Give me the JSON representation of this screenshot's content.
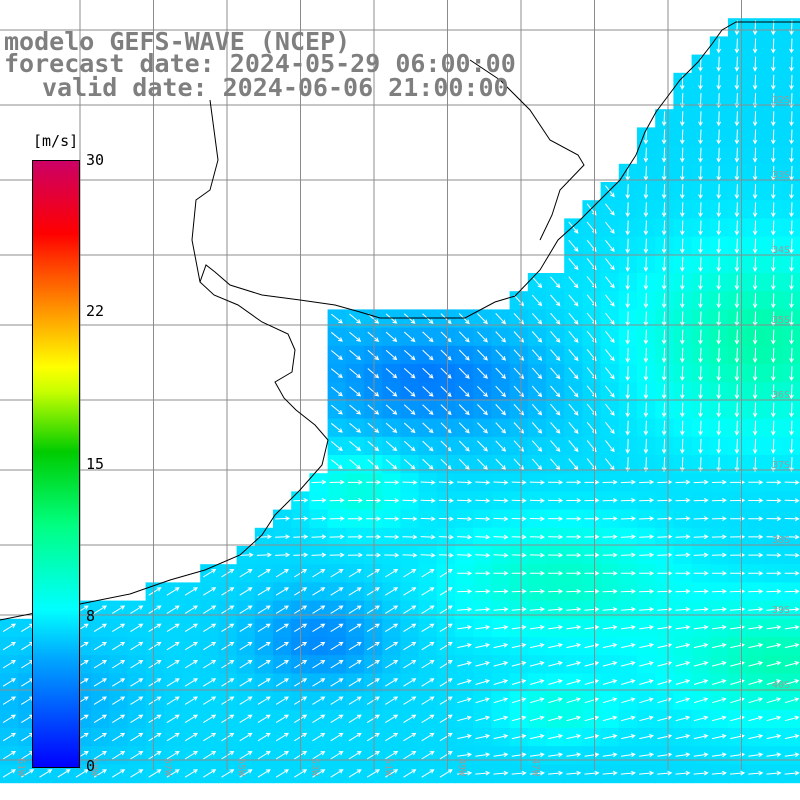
{
  "title": {
    "line1": "modelo GEFS-WAVE (NCEP)",
    "line2": "forecast date: 2024-05-29 06:00:00",
    "line3": "valid date: 2024-06-06 21:00:00"
  },
  "colorbar": {
    "unit": "[m/s]",
    "ticks": [
      "30",
      "22",
      "15",
      "8",
      "0"
    ],
    "tick_values": [
      30,
      22,
      15,
      8,
      0
    ],
    "min": 0,
    "max": 30,
    "colors": [
      "#0000ff",
      "#00a8ff",
      "#00ffff",
      "#00ff80",
      "#00cc00",
      "#ffff00",
      "#ff9900",
      "#ff0000",
      "#cc0066"
    ]
  },
  "latitude_labels": [
    "32S",
    "33S",
    "34S",
    "35S",
    "36S",
    "37S",
    "38S",
    "39S",
    "40S"
  ],
  "longitude_labels": [
    "61W",
    "59W",
    "57W",
    "55W",
    "53W",
    "51W",
    "49W",
    "47W"
  ],
  "colors": {
    "land": "#ffffff",
    "grid": "#8c8c8c",
    "coast": "#000000",
    "arrow": "#ffffff",
    "title": "#7f7f7f"
  }
}
